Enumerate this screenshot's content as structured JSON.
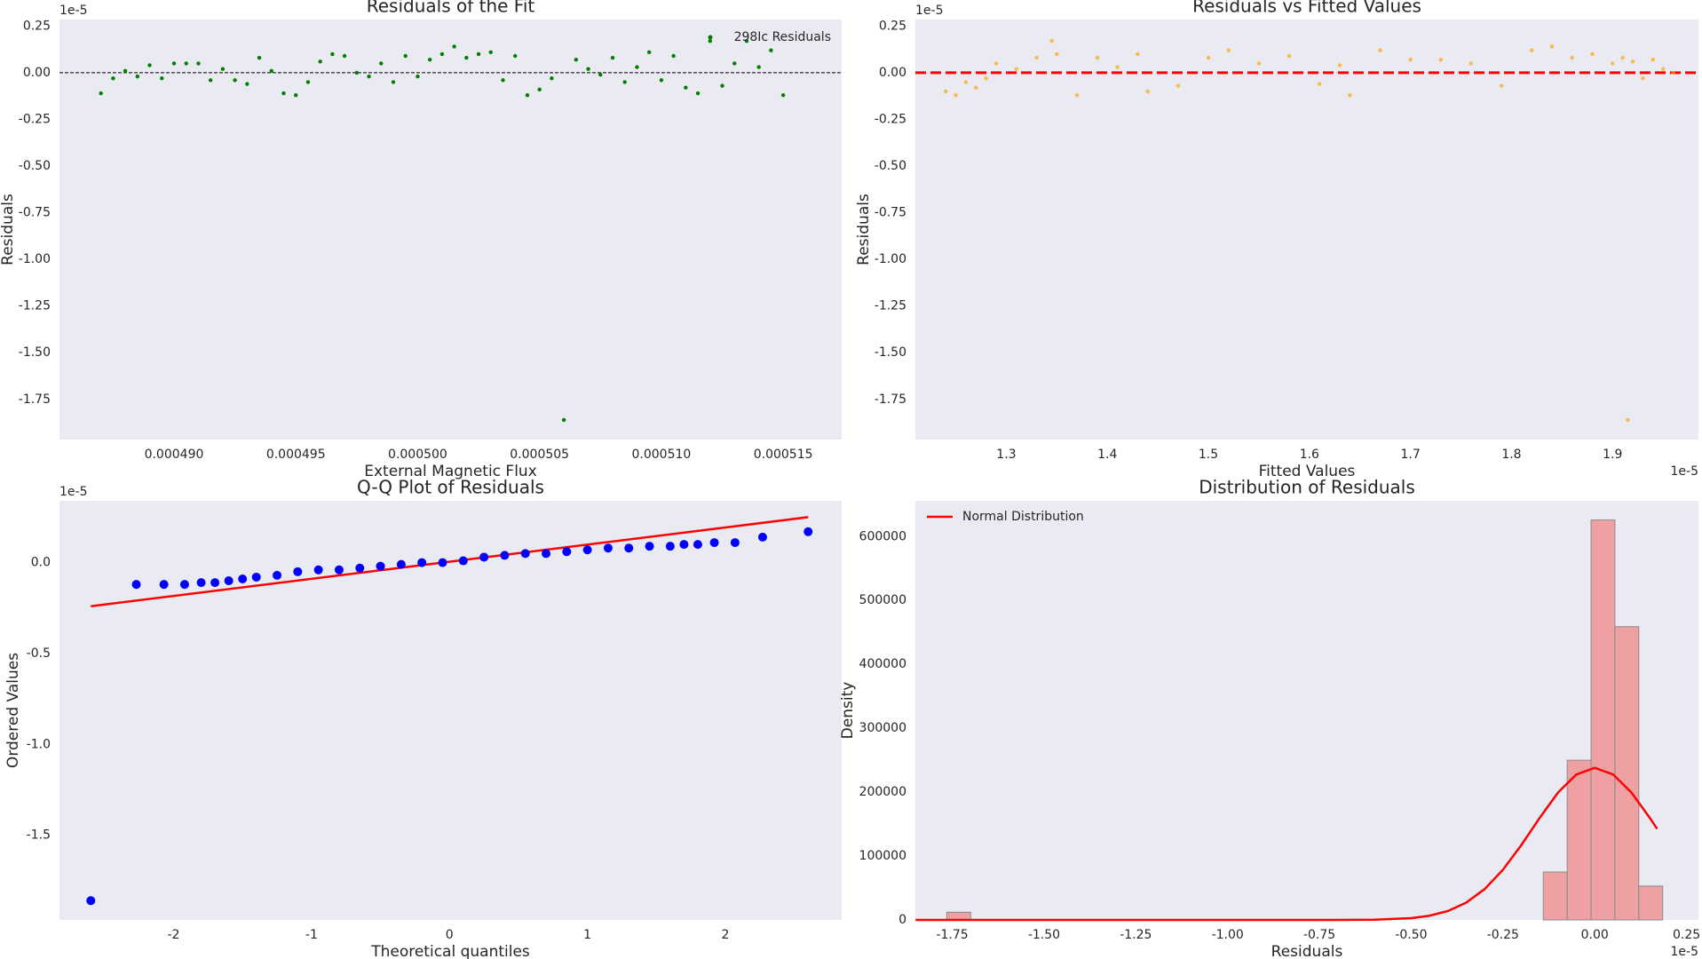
{
  "chart_data": [
    {
      "type": "scatter",
      "title": "Residuals of the Fit",
      "xlabel": "External Magnetic Flux",
      "ylabel": "Residuals",
      "y_offset": "1e-5",
      "name": "298Ic Residuals",
      "color": "green",
      "legend": "upper right",
      "hline": 0,
      "hline_color": "black",
      "hline_style": "dotted",
      "grid": false,
      "x": [
        0.000487,
        0.0004875,
        0.000488,
        0.0004885,
        0.000489,
        0.0004895,
        0.00049,
        0.0004905,
        0.000491,
        0.0004915,
        0.000492,
        0.0004925,
        0.000493,
        0.0004935,
        0.000494,
        0.0004945,
        0.000495,
        0.0004955,
        0.000496,
        0.0004965,
        0.000497,
        0.0004975,
        0.000498,
        0.0004985,
        0.000499,
        0.0004995,
        0.0005,
        0.0005005,
        0.000501,
        0.0005015,
        0.000502,
        0.0005025,
        0.000503,
        0.0005035,
        0.000504,
        0.0005045,
        0.000505,
        0.0005055,
        0.000506,
        0.0005065,
        0.000507,
        0.0005075,
        0.000508,
        0.0005085,
        0.000509,
        0.0005095,
        0.00051,
        0.0005105,
        0.000511,
        0.0005115,
        0.000512,
        0.0005125,
        0.000513,
        0.0005135,
        0.000514,
        0.0005145,
        0.000515
      ],
      "values": [
        -0.11,
        -0.03,
        0.01,
        -0.02,
        0.04,
        -0.03,
        0.05,
        0.05,
        0.05,
        -0.04,
        0.02,
        -0.04,
        -0.06,
        0.08,
        0.01,
        -0.11,
        -0.12,
        -0.05,
        0.06,
        0.1,
        0.09,
        0,
        -0.02,
        0.05,
        -0.05,
        0.09,
        -0.02,
        0.07,
        0.1,
        0.14,
        0.08,
        0.1,
        0.11,
        -0.04,
        0.09,
        -0.12,
        -0.09,
        -0.03,
        -1.86,
        0.07,
        0.02,
        -0.01,
        0.08,
        -0.05,
        0.03,
        0.11,
        -0.04,
        0.09,
        -0.08,
        -0.11,
        0.17,
        -0.07,
        0.05,
        0.17,
        0.03,
        0.12,
        -0.12
      ],
      "xlim": [
        0.0004853,
        0.0005174
      ],
      "xticks": [
        {
          "value": 0.00049,
          "label": "0.000490"
        },
        {
          "value": 0.000495,
          "label": "0.000495"
        },
        {
          "value": 0.0005,
          "label": "0.000500"
        },
        {
          "value": 0.000505,
          "label": "0.000505"
        },
        {
          "value": 0.00051,
          "label": "0.000510"
        },
        {
          "value": 0.000515,
          "label": "0.000515"
        }
      ],
      "ylim": [
        -1.965,
        0.285
      ],
      "yticks": [
        0.25,
        {
          "value": 0,
          "label": "0.00"
        },
        -0.25,
        {
          "value": -0.5,
          "label": "-0.50"
        },
        -0.75,
        {
          "value": -1,
          "label": "-1.00"
        },
        -1.25,
        {
          "value": -1.5,
          "label": "-1.50"
        },
        -1.75
      ]
    },
    {
      "type": "scatter",
      "title": "Residuals vs Fitted Values",
      "xlabel": "Fitted Values",
      "ylabel": "Residuals",
      "y_offset": "1e-5",
      "x_offset": "1e-5",
      "color": "orange",
      "hline": 0,
      "hline_color": "red",
      "hline_style": "dashed",
      "grid": false,
      "x": [
        1.24,
        1.25,
        1.26,
        1.27,
        1.28,
        1.29,
        1.31,
        1.33,
        1.345,
        1.35,
        1.37,
        1.39,
        1.41,
        1.43,
        1.44,
        1.47,
        1.5,
        1.52,
        1.55,
        1.58,
        1.61,
        1.63,
        1.64,
        1.67,
        1.7,
        1.73,
        1.76,
        1.79,
        1.82,
        1.84,
        1.86,
        1.88,
        1.9,
        1.91,
        1.915,
        1.92,
        1.93,
        1.94,
        1.95,
        1.96
      ],
      "values": [
        -0.1,
        -0.12,
        -0.05,
        -0.08,
        -0.03,
        0.05,
        0.02,
        0.08,
        0.17,
        0.1,
        -0.12,
        0.08,
        0.03,
        0.1,
        -0.1,
        -0.07,
        0.08,
        0.12,
        0.05,
        0.09,
        -0.06,
        0.04,
        -0.12,
        0.12,
        0.07,
        0.07,
        0.05,
        -0.07,
        0.12,
        0.14,
        0.08,
        0.1,
        0.05,
        0.08,
        -1.86,
        0.06,
        -0.03,
        0.07,
        0.02,
        0
      ],
      "xlim": [
        1.21,
        1.985
      ],
      "xticks": [
        1.3,
        1.4,
        1.5,
        1.6,
        1.7,
        1.8,
        1.9
      ],
      "ylim": [
        -1.965,
        0.285
      ],
      "yticks": [
        0.25,
        {
          "value": 0,
          "label": "0.00"
        },
        -0.25,
        {
          "value": -0.5,
          "label": "-0.50"
        },
        -0.75,
        {
          "value": -1,
          "label": "-1.00"
        },
        -1.25,
        {
          "value": -1.5,
          "label": "-1.50"
        },
        -1.75
      ]
    },
    {
      "type": "scatter",
      "title": "Q-Q Plot of Residuals",
      "xlabel": "Theoretical quantiles",
      "ylabel": "Ordered Values",
      "y_offset": "1e-5",
      "color": "blue",
      "grid": false,
      "x": [
        -2.6,
        -2.27,
        -2.07,
        -1.92,
        -1.8,
        -1.7,
        -1.6,
        -1.5,
        -1.4,
        -1.25,
        -1.1,
        -0.95,
        -0.8,
        -0.65,
        -0.5,
        -0.35,
        -0.2,
        -0.05,
        0.1,
        0.25,
        0.4,
        0.55,
        0.7,
        0.85,
        1.0,
        1.15,
        1.3,
        1.45,
        1.6,
        1.7,
        1.8,
        1.92,
        2.07,
        2.27,
        2.6
      ],
      "values": [
        -1.86,
        -0.12,
        -0.12,
        -0.12,
        -0.11,
        -0.11,
        -0.1,
        -0.09,
        -0.08,
        -0.07,
        -0.05,
        -0.04,
        -0.04,
        -0.03,
        -0.02,
        -0.01,
        0,
        0,
        0.01,
        0.03,
        0.04,
        0.05,
        0.05,
        0.06,
        0.07,
        0.08,
        0.08,
        0.09,
        0.09,
        0.1,
        0.1,
        0.11,
        0.11,
        0.14,
        0.17
      ],
      "fit_line": {
        "color": "red",
        "x": [
          -2.6,
          2.6
        ],
        "values": [
          -0.24,
          0.25
        ]
      },
      "xlim": [
        -2.827,
        2.843
      ],
      "xticks": [
        -2,
        -1,
        0,
        1,
        2
      ],
      "ylim": [
        -1.966,
        0.34
      ],
      "yticks": [
        {
          "value": 0,
          "label": "0.0"
        },
        {
          "value": -0.5,
          "label": "-0.5"
        },
        {
          "value": -1,
          "label": "-1.0"
        },
        {
          "value": -1.5,
          "label": "-1.5"
        }
      ]
    },
    {
      "type": "histogram",
      "title": "Distribution of Residuals",
      "xlabel": "Residuals",
      "ylabel": "Density",
      "x_offset": "1e-5",
      "color": "lightcoral",
      "legend": "upper left",
      "grid": false,
      "bins": [
        -1.765,
        -1.7,
        -1.635,
        -1.57,
        -1.505,
        -1.44,
        -1.375,
        -1.31,
        -1.245,
        -1.18,
        -1.115,
        -1.05,
        -0.985,
        -0.92,
        -0.855,
        -0.79,
        -0.725,
        -0.66,
        -0.595,
        -0.53,
        -0.465,
        -0.4,
        -0.335,
        -0.27,
        -0.205,
        -0.14,
        -0.075,
        -0.01,
        0.055,
        0.12,
        0.185
      ],
      "values": [
        12000,
        0,
        0,
        0,
        0,
        0,
        0,
        0,
        0,
        0,
        0,
        0,
        0,
        0,
        0,
        0,
        0,
        0,
        0,
        0,
        0,
        0,
        0,
        0,
        0,
        75000,
        250000,
        626000,
        459000,
        53000
      ],
      "curve": {
        "name": "Normal Distribution",
        "color": "red",
        "x": [
          -1.85,
          -0.7,
          -0.6,
          -0.5,
          -0.45,
          -0.4,
          -0.35,
          -0.3,
          -0.25,
          -0.2,
          -0.15,
          -0.1,
          -0.05,
          0,
          0.05,
          0.1,
          0.15,
          0.17
        ],
        "values": [
          0,
          40,
          400,
          2800,
          6600,
          13900,
          27100,
          48200,
          78600,
          117100,
          159700,
          199400,
          227700,
          238000,
          227700,
          199400,
          159700,
          142600
        ]
      },
      "xlim": [
        -1.8506,
        0.2825
      ],
      "xticks": [
        -1.75,
        {
          "value": -1.5,
          "label": "-1.50"
        },
        -1.25,
        {
          "value": -1,
          "label": "-1.00"
        },
        -0.75,
        {
          "value": -0.5,
          "label": "-0.50"
        },
        -0.25,
        {
          "value": 0,
          "label": "0.00"
        },
        0.25
      ],
      "ylim": [
        0,
        656000
      ],
      "yticks": [
        0,
        100000,
        200000,
        300000,
        400000,
        500000,
        600000
      ]
    }
  ]
}
